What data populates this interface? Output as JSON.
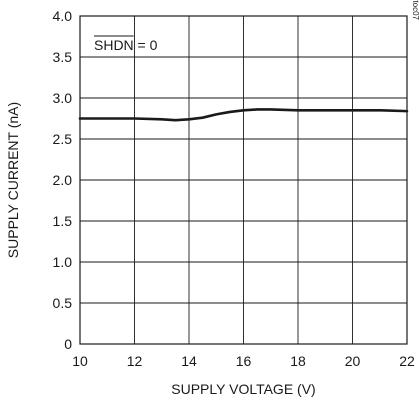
{
  "chart_data": {
    "type": "line",
    "xlabel": "SUPPLY VOLTAGE (V)",
    "ylabel": "SUPPLY CURRENT (nA)",
    "xlim": [
      10,
      22
    ],
    "ylim": [
      0,
      4.0
    ],
    "x_ticks": [
      "10",
      "12",
      "14",
      "16",
      "18",
      "20",
      "22"
    ],
    "y_ticks": [
      "0",
      "0.5",
      "1.0",
      "1.5",
      "2.0",
      "2.5",
      "3.0",
      "3.5",
      "4.0"
    ],
    "grid": true,
    "annotation": "SHDN = 0",
    "annotation_overline": "SHDN",
    "side_label": "MAX9709 toc07",
    "series": [
      {
        "x": [
          10,
          11,
          12,
          13,
          13.5,
          14,
          14.5,
          15,
          15.5,
          16,
          16.5,
          17,
          18,
          19,
          20,
          21,
          22
        ],
        "y": [
          2.75,
          2.75,
          2.75,
          2.74,
          2.73,
          2.74,
          2.76,
          2.8,
          2.83,
          2.85,
          2.86,
          2.86,
          2.85,
          2.85,
          2.85,
          2.85,
          2.84
        ]
      }
    ]
  }
}
